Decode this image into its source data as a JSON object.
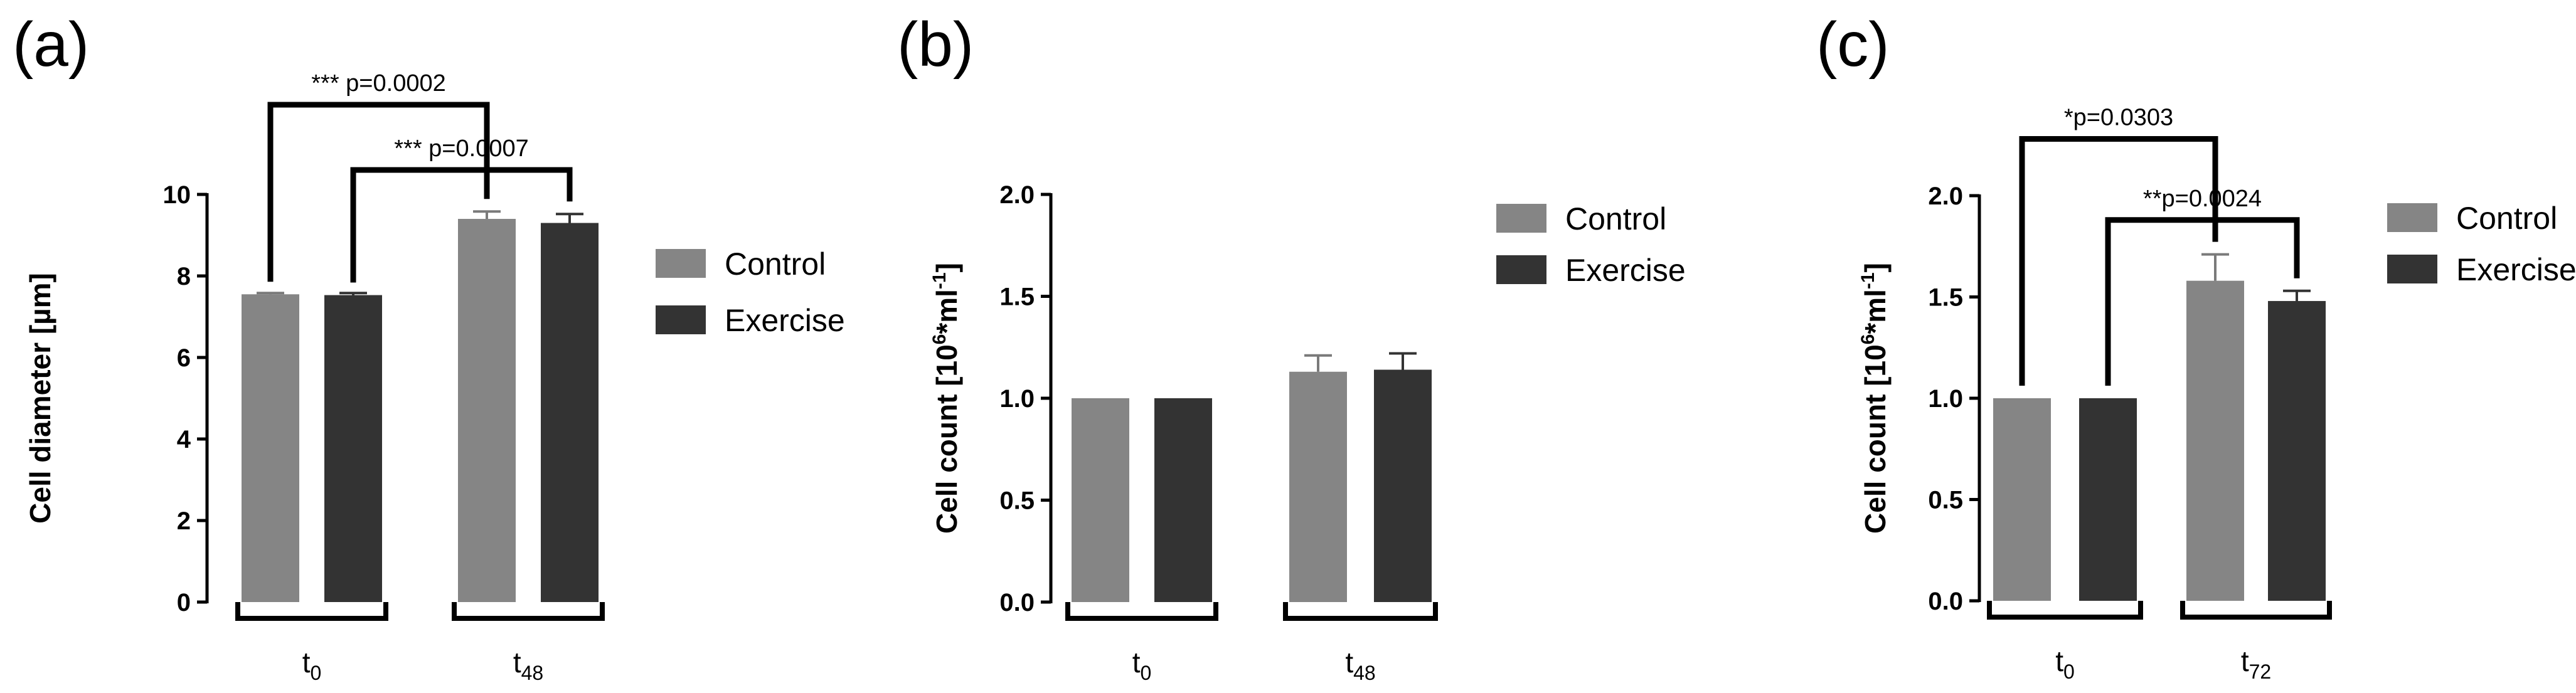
{
  "colors": {
    "control": "#858585",
    "exercise": "#333333"
  },
  "legend": {
    "control": "Control",
    "exercise": "Exercise"
  },
  "chart_data": [
    {
      "type": "bar",
      "panel_label": "(a)",
      "ylabel": "Cell diameter [µm]",
      "ylim": [
        0,
        10
      ],
      "yticks": [
        0,
        2,
        4,
        6,
        8,
        10
      ],
      "ytick_labels": [
        "0",
        "2",
        "4",
        "6",
        "8",
        "10"
      ],
      "categories": [
        {
          "base": "t",
          "sub": "0"
        },
        {
          "base": "t",
          "sub": "48"
        }
      ],
      "series": [
        {
          "name": "Control",
          "values": [
            7.55,
            9.4
          ],
          "errors": [
            0.03,
            0.18
          ]
        },
        {
          "name": "Exercise",
          "values": [
            7.53,
            9.3
          ],
          "errors": [
            0.05,
            0.22
          ]
        }
      ],
      "significance": [
        {
          "label": "*** p=0.0002",
          "from": [
            0,
            "Control"
          ],
          "to": [
            1,
            "Control"
          ],
          "level": 12.2
        },
        {
          "label": "*** p=0.0007",
          "from": [
            0,
            "Exercise"
          ],
          "to": [
            1,
            "Exercise"
          ],
          "level": 10.6
        }
      ]
    },
    {
      "type": "bar",
      "panel_label": "(b)",
      "ylabel_base": "Cell count [10",
      "ylabel_sup1": "6",
      "ylabel_mid": "*ml",
      "ylabel_sup2": "-1",
      "ylabel_end": "]",
      "ylim": [
        0,
        2
      ],
      "yticks": [
        0,
        0.5,
        1,
        1.5,
        2
      ],
      "ytick_labels": [
        "0.0",
        "0.5",
        "1.0",
        "1.5",
        "2.0"
      ],
      "categories": [
        {
          "base": "t",
          "sub": "0"
        },
        {
          "base": "t",
          "sub": "48"
        }
      ],
      "series": [
        {
          "name": "Control",
          "values": [
            1.0,
            1.13
          ],
          "errors": [
            0,
            0.08
          ]
        },
        {
          "name": "Exercise",
          "values": [
            1.0,
            1.14
          ],
          "errors": [
            0,
            0.08
          ]
        }
      ],
      "significance": []
    },
    {
      "type": "bar",
      "panel_label": "(c)",
      "ylabel_base": "Cell count [10",
      "ylabel_sup1": "6",
      "ylabel_mid": "*ml",
      "ylabel_sup2": "-1",
      "ylabel_end": "]",
      "ylim": [
        0,
        2
      ],
      "yticks": [
        0,
        0.5,
        1,
        1.5,
        2
      ],
      "ytick_labels": [
        "0.0",
        "0.5",
        "1.0",
        "1.5",
        "2.0"
      ],
      "categories": [
        {
          "base": "t",
          "sub": "0"
        },
        {
          "base": "t",
          "sub": "72"
        }
      ],
      "series": [
        {
          "name": "Control",
          "values": [
            1.0,
            1.58
          ],
          "errors": [
            0,
            0.13
          ]
        },
        {
          "name": "Exercise",
          "values": [
            1.0,
            1.48
          ],
          "errors": [
            0,
            0.05
          ]
        }
      ],
      "significance": [
        {
          "label": "*p=0.0303",
          "from": [
            0,
            "Control"
          ],
          "to": [
            1,
            "Control"
          ],
          "level": 2.28
        },
        {
          "label": "**p=0.0024",
          "from": [
            0,
            "Exercise"
          ],
          "to": [
            1,
            "Exercise"
          ],
          "level": 1.88
        }
      ]
    }
  ]
}
